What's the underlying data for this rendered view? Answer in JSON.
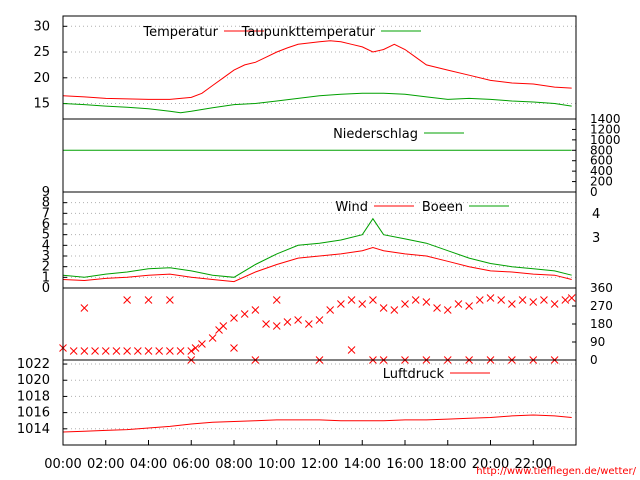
{
  "chart_data": [
    {
      "type": "line",
      "ylim": [
        12,
        32
      ],
      "yticks": [
        15,
        20,
        25,
        30
      ],
      "series": [
        {
          "name": "Temperatur",
          "color": "#ff0000",
          "points": [
            [
              0,
              16.5
            ],
            [
              1,
              16.3
            ],
            [
              2,
              16.0
            ],
            [
              3,
              15.9
            ],
            [
              4,
              15.8
            ],
            [
              5,
              15.8
            ],
            [
              6,
              16.2
            ],
            [
              6.5,
              17.0
            ],
            [
              7,
              18.5
            ],
            [
              7.5,
              20.0
            ],
            [
              8,
              21.5
            ],
            [
              8.5,
              22.5
            ],
            [
              9,
              23.0
            ],
            [
              9.5,
              24.0
            ],
            [
              10,
              25.0
            ],
            [
              10.5,
              25.8
            ],
            [
              11,
              26.5
            ],
            [
              12,
              27.0
            ],
            [
              12.5,
              27.2
            ],
            [
              13,
              27.0
            ],
            [
              13.5,
              26.5
            ],
            [
              14,
              26.0
            ],
            [
              14.5,
              25.0
            ],
            [
              15,
              25.5
            ],
            [
              15.5,
              26.5
            ],
            [
              16,
              25.5
            ],
            [
              16.5,
              24.0
            ],
            [
              17,
              22.5
            ],
            [
              17.5,
              22.0
            ],
            [
              18,
              21.5
            ],
            [
              19,
              20.5
            ],
            [
              20,
              19.5
            ],
            [
              21,
              19.0
            ],
            [
              22,
              18.8
            ],
            [
              23,
              18.2
            ],
            [
              23.8,
              18.0
            ]
          ]
        },
        {
          "name": "Taupunkttemperatur",
          "color": "#00a000",
          "points": [
            [
              0,
              15.0
            ],
            [
              1,
              14.8
            ],
            [
              2,
              14.5
            ],
            [
              3,
              14.3
            ],
            [
              4,
              14.0
            ],
            [
              5,
              13.5
            ],
            [
              5.5,
              13.2
            ],
            [
              6,
              13.5
            ],
            [
              7,
              14.2
            ],
            [
              8,
              14.8
            ],
            [
              9,
              15.0
            ],
            [
              10,
              15.5
            ],
            [
              11,
              16.0
            ],
            [
              12,
              16.5
            ],
            [
              13,
              16.8
            ],
            [
              14,
              17.0
            ],
            [
              15,
              17.0
            ],
            [
              16,
              16.8
            ],
            [
              17,
              16.3
            ],
            [
              18,
              15.8
            ],
            [
              19,
              16.0
            ],
            [
              20,
              15.8
            ],
            [
              21,
              15.5
            ],
            [
              22,
              15.3
            ],
            [
              23,
              15.0
            ],
            [
              23.8,
              14.5
            ]
          ]
        }
      ]
    },
    {
      "type": "line",
      "ylim": [
        0,
        1400
      ],
      "yticks": [
        0,
        200,
        400,
        600,
        800,
        1000,
        1200,
        1400
      ],
      "series": [
        {
          "name": "Niederschlag",
          "color": "#00a000",
          "points": [
            [
              0,
              800
            ],
            [
              23.8,
              800
            ]
          ]
        }
      ]
    },
    {
      "type": "line",
      "ylim": [
        0,
        9
      ],
      "yticks": [
        0,
        1,
        2,
        3,
        4,
        5,
        6,
        7,
        8,
        9
      ],
      "right_labels": [
        "3",
        "4"
      ],
      "series": [
        {
          "name": "Wind",
          "color": "#ff0000",
          "points": [
            [
              0,
              0.8
            ],
            [
              1,
              0.7
            ],
            [
              2,
              0.9
            ],
            [
              3,
              1.0
            ],
            [
              4,
              1.2
            ],
            [
              5,
              1.3
            ],
            [
              6,
              1.0
            ],
            [
              7,
              0.8
            ],
            [
              8,
              0.6
            ],
            [
              9,
              1.5
            ],
            [
              10,
              2.2
            ],
            [
              11,
              2.8
            ],
            [
              12,
              3.0
            ],
            [
              13,
              3.2
            ],
            [
              14,
              3.5
            ],
            [
              14.5,
              3.8
            ],
            [
              15,
              3.5
            ],
            [
              16,
              3.2
            ],
            [
              17,
              3.0
            ],
            [
              18,
              2.5
            ],
            [
              19,
              2.0
            ],
            [
              20,
              1.6
            ],
            [
              21,
              1.5
            ],
            [
              22,
              1.3
            ],
            [
              23,
              1.2
            ],
            [
              23.8,
              0.8
            ]
          ]
        },
        {
          "name": "Boeen",
          "color": "#00a000",
          "points": [
            [
              0,
              1.2
            ],
            [
              1,
              1.0
            ],
            [
              2,
              1.3
            ],
            [
              3,
              1.5
            ],
            [
              4,
              1.8
            ],
            [
              5,
              1.9
            ],
            [
              6,
              1.6
            ],
            [
              7,
              1.2
            ],
            [
              8,
              1.0
            ],
            [
              9,
              2.2
            ],
            [
              10,
              3.2
            ],
            [
              11,
              4.0
            ],
            [
              12,
              4.2
            ],
            [
              13,
              4.5
            ],
            [
              14,
              5.0
            ],
            [
              14.5,
              6.5
            ],
            [
              15,
              5.0
            ],
            [
              16,
              4.6
            ],
            [
              17,
              4.2
            ],
            [
              18,
              3.5
            ],
            [
              19,
              2.8
            ],
            [
              20,
              2.3
            ],
            [
              21,
              2.0
            ],
            [
              22,
              1.8
            ],
            [
              23,
              1.6
            ],
            [
              23.8,
              1.2
            ]
          ]
        }
      ]
    },
    {
      "type": "scatter",
      "ylim": [
        0,
        360
      ],
      "yticks": [
        0,
        90,
        180,
        270,
        360
      ],
      "series": [
        {
          "name": "",
          "color": "#ff0000",
          "marker": "x",
          "points": [
            [
              0,
              60
            ],
            [
              0.5,
              45
            ],
            [
              1,
              45
            ],
            [
              1.5,
              45
            ],
            [
              2,
              45
            ],
            [
              2.5,
              45
            ],
            [
              3,
              45
            ],
            [
              3.5,
              45
            ],
            [
              4,
              45
            ],
            [
              4.5,
              45
            ],
            [
              5,
              45
            ],
            [
              5.5,
              45
            ],
            [
              6,
              45
            ],
            [
              6.2,
              60
            ],
            [
              6.5,
              80
            ],
            [
              7,
              110
            ],
            [
              7.3,
              150
            ],
            [
              7.5,
              170
            ],
            [
              8,
              210
            ],
            [
              8.5,
              230
            ],
            [
              9,
              250
            ],
            [
              9.5,
              180
            ],
            [
              10,
              170
            ],
            [
              10.5,
              190
            ],
            [
              11,
              200
            ],
            [
              11.5,
              180
            ],
            [
              12,
              200
            ],
            [
              12.5,
              250
            ],
            [
              13,
              280
            ],
            [
              13.5,
              300
            ],
            [
              14,
              280
            ],
            [
              14.5,
              300
            ],
            [
              15,
              260
            ],
            [
              15.5,
              250
            ],
            [
              16,
              280
            ],
            [
              16.5,
              300
            ],
            [
              17,
              290
            ],
            [
              17.5,
              260
            ],
            [
              18,
              250
            ],
            [
              18.5,
              280
            ],
            [
              19,
              270
            ],
            [
              19.5,
              300
            ],
            [
              20,
              310
            ],
            [
              20.5,
              300
            ],
            [
              21,
              280
            ],
            [
              21.5,
              300
            ],
            [
              22,
              290
            ],
            [
              22.5,
              300
            ],
            [
              23,
              280
            ],
            [
              23.5,
              300
            ],
            [
              23.8,
              310
            ],
            [
              1,
              260
            ],
            [
              3,
              300
            ],
            [
              4,
              300
            ],
            [
              5,
              300
            ],
            [
              6,
              0
            ],
            [
              8,
              60
            ],
            [
              9,
              0
            ],
            [
              10,
              300
            ],
            [
              12,
              0
            ],
            [
              13.5,
              50
            ],
            [
              14.5,
              0
            ],
            [
              15,
              0
            ],
            [
              16,
              0
            ],
            [
              17,
              0
            ],
            [
              18,
              0
            ],
            [
              19,
              0
            ],
            [
              20,
              0
            ],
            [
              21,
              0
            ],
            [
              22,
              0
            ],
            [
              23,
              0
            ]
          ]
        }
      ]
    },
    {
      "type": "line",
      "ylim": [
        1012,
        1022.5
      ],
      "yticks": [
        1014,
        1016,
        1018,
        1020,
        1022
      ],
      "series": [
        {
          "name": "Luftdruck",
          "color": "#ff0000",
          "points": [
            [
              0,
              1013.6
            ],
            [
              1,
              1013.7
            ],
            [
              2,
              1013.8
            ],
            [
              3,
              1013.9
            ],
            [
              4,
              1014.1
            ],
            [
              5,
              1014.3
            ],
            [
              6,
              1014.6
            ],
            [
              7,
              1014.8
            ],
            [
              8,
              1014.9
            ],
            [
              9,
              1015.0
            ],
            [
              10,
              1015.1
            ],
            [
              11,
              1015.1
            ],
            [
              12,
              1015.1
            ],
            [
              13,
              1015.0
            ],
            [
              14,
              1015.0
            ],
            [
              15,
              1015.0
            ],
            [
              16,
              1015.1
            ],
            [
              17,
              1015.1
            ],
            [
              18,
              1015.2
            ],
            [
              19,
              1015.3
            ],
            [
              20,
              1015.4
            ],
            [
              21,
              1015.6
            ],
            [
              22,
              1015.7
            ],
            [
              23,
              1015.6
            ],
            [
              23.8,
              1015.4
            ]
          ]
        }
      ]
    }
  ],
  "x_axis": {
    "ticks": [
      "00:00",
      "02:00",
      "04:00",
      "06:00",
      "08:00",
      "10:00",
      "12:00",
      "14:00",
      "16:00",
      "18:00",
      "20:00",
      "22:00"
    ]
  },
  "source_url": "http://www.tiefflegen.de/wetter/"
}
